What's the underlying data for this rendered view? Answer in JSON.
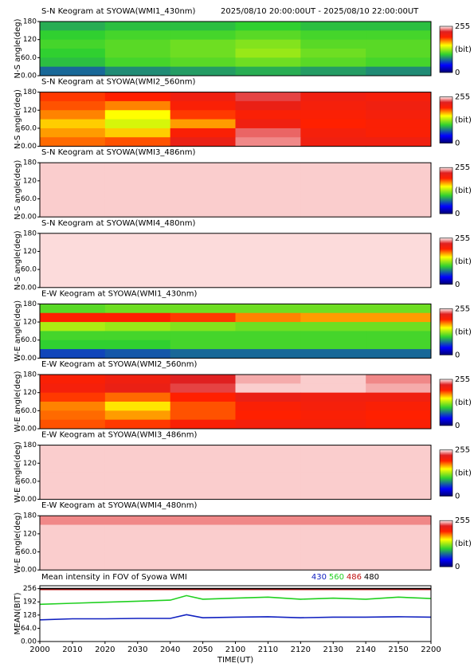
{
  "chart_data": [
    {
      "type": "heatmap",
      "title": "S-N Keogram at SYOWA(WMI1_430nm)",
      "subtitle": "2025/08/10 20:00:00UT - 2025/08/10 22:00:00UT",
      "ylabel": "N-S angle(deg)",
      "xlim": [
        0,
        120
      ],
      "ylim": [
        0,
        180
      ],
      "yticks": [
        180,
        120,
        {
          "value": 60,
          "label": "60.0"
        },
        {
          "value": 0,
          "label": "0.00"
        }
      ],
      "clim": [
        0,
        255
      ],
      "cticks": [
        255,
        0
      ],
      "clabel": "(bit)",
      "colormap": [
        [
          0,
          "#000070"
        ],
        [
          40,
          "#0000ff"
        ],
        [
          100,
          "#30d030"
        ],
        [
          150,
          "#ffff00"
        ],
        [
          195,
          "#ff2000"
        ],
        [
          225,
          "#e02020"
        ],
        [
          255,
          "#fff0f0"
        ]
      ],
      "values": [
        [
          90,
          95,
          95,
          100,
          95,
          95
        ],
        [
          100,
          105,
          105,
          110,
          105,
          105
        ],
        [
          105,
          110,
          115,
          120,
          110,
          110
        ],
        [
          100,
          110,
          115,
          125,
          115,
          110
        ],
        [
          95,
          105,
          110,
          115,
          110,
          105
        ],
        [
          70,
          80,
          85,
          90,
          85,
          80
        ]
      ]
    },
    {
      "type": "heatmap",
      "title": "S-N Keogram at SYOWA(WMI2_560nm)",
      "ylabel": "N-S angle(deg)",
      "xlim": [
        0,
        120
      ],
      "ylim": [
        0,
        180
      ],
      "yticks": [
        180,
        120,
        {
          "value": 60,
          "label": "60.0"
        },
        {
          "value": 0,
          "label": "0.00"
        }
      ],
      "clim": [
        0,
        255
      ],
      "cticks": [
        255,
        0
      ],
      "clabel": "(bit)",
      "colormap": [
        [
          0,
          "#000070"
        ],
        [
          40,
          "#0000ff"
        ],
        [
          100,
          "#30d030"
        ],
        [
          150,
          "#ffff00"
        ],
        [
          195,
          "#ff2000"
        ],
        [
          225,
          "#e02020"
        ],
        [
          255,
          "#fff0f0"
        ]
      ],
      "values": [
        [
          190,
          195,
          210,
          230,
          210,
          205
        ],
        [
          185,
          175,
          200,
          215,
          205,
          210
        ],
        [
          175,
          150,
          190,
          200,
          200,
          205
        ],
        [
          160,
          140,
          170,
          210,
          195,
          200
        ],
        [
          170,
          160,
          200,
          235,
          205,
          200
        ],
        [
          180,
          185,
          215,
          240,
          210,
          210
        ]
      ]
    },
    {
      "type": "heatmap",
      "title": "S-N Keogram at SYOWA(WMI3_486nm)",
      "ylabel": "N-S angle(deg)",
      "xlim": [
        0,
        120
      ],
      "ylim": [
        0,
        180
      ],
      "yticks": [
        180,
        120,
        {
          "value": 60,
          "label": "60.0"
        },
        {
          "value": 0,
          "label": "0.00"
        }
      ],
      "clim": [
        0,
        255
      ],
      "cticks": [
        255,
        0
      ],
      "clabel": "(bit)",
      "colormap": [
        [
          0,
          "#000070"
        ],
        [
          40,
          "#0000ff"
        ],
        [
          100,
          "#30d030"
        ],
        [
          150,
          "#ffff00"
        ],
        [
          195,
          "#ff2000"
        ],
        [
          225,
          "#e02020"
        ],
        [
          255,
          "#fff0f0"
        ]
      ],
      "values": [
        [
          250,
          250,
          250,
          250,
          250,
          250
        ],
        [
          250,
          250,
          250,
          250,
          250,
          250
        ],
        [
          250,
          250,
          250,
          250,
          250,
          250
        ],
        [
          250,
          250,
          250,
          250,
          250,
          250
        ],
        [
          250,
          250,
          250,
          250,
          250,
          250
        ],
        [
          250,
          250,
          250,
          250,
          250,
          250
        ]
      ]
    },
    {
      "type": "heatmap",
      "title": "S-N Keogram at SYOWA(WMI4_480nm)",
      "ylabel": "N-S angle(deg)",
      "xlim": [
        0,
        120
      ],
      "ylim": [
        0,
        180
      ],
      "yticks": [
        180,
        120,
        {
          "value": 60,
          "label": "60.0"
        },
        {
          "value": 0,
          "label": "0.00"
        }
      ],
      "clim": [
        0,
        255
      ],
      "cticks": [
        255,
        0
      ],
      "clabel": "(bit)",
      "colormap": [
        [
          0,
          "#000070"
        ],
        [
          40,
          "#0000ff"
        ],
        [
          100,
          "#30d030"
        ],
        [
          150,
          "#ffff00"
        ],
        [
          195,
          "#ff2000"
        ],
        [
          225,
          "#e02020"
        ],
        [
          255,
          "#fff0f0"
        ]
      ],
      "values": [
        [
          252,
          252,
          252,
          252,
          252,
          252
        ],
        [
          252,
          252,
          252,
          252,
          252,
          252
        ],
        [
          252,
          252,
          252,
          252,
          252,
          252
        ],
        [
          252,
          252,
          252,
          252,
          252,
          252
        ],
        [
          252,
          252,
          252,
          252,
          252,
          252
        ],
        [
          252,
          252,
          252,
          252,
          252,
          252
        ]
      ]
    },
    {
      "type": "heatmap",
      "title": "E-W Keogram at SYOWA(WMI1_430nm)",
      "ylabel": "W-E angle(deg)",
      "xlim": [
        0,
        120
      ],
      "ylim": [
        0,
        180
      ],
      "yticks": [
        180,
        120,
        {
          "value": 60,
          "label": "60.0"
        },
        {
          "value": 0,
          "label": "0.00"
        }
      ],
      "clim": [
        0,
        255
      ],
      "cticks": [
        255,
        0
      ],
      "clabel": "(bit)",
      "colormap": [
        [
          0,
          "#000070"
        ],
        [
          40,
          "#0000ff"
        ],
        [
          100,
          "#30d030"
        ],
        [
          150,
          "#ffff00"
        ],
        [
          195,
          "#ff2000"
        ],
        [
          225,
          "#e02020"
        ],
        [
          255,
          "#fff0f0"
        ]
      ],
      "values": [
        [
          110,
          115,
          115,
          115,
          115,
          115
        ],
        [
          195,
          195,
          190,
          175,
          170,
          170
        ],
        [
          130,
          125,
          120,
          115,
          115,
          115
        ],
        [
          105,
          105,
          105,
          105,
          105,
          105
        ],
        [
          100,
          100,
          105,
          105,
          105,
          105
        ],
        [
          60,
          65,
          70,
          70,
          70,
          70
        ]
      ]
    },
    {
      "type": "heatmap",
      "title": "E-W Keogram at SYOWA(WMI2_560nm)",
      "ylabel": "W-E angle(deg)",
      "xlim": [
        0,
        120
      ],
      "ylim": [
        0,
        180
      ],
      "yticks": [
        180,
        120,
        {
          "value": 60,
          "label": "60.0"
        },
        {
          "value": 0,
          "label": "0.00"
        }
      ],
      "clim": [
        0,
        255
      ],
      "cticks": [
        255,
        0
      ],
      "clabel": "(bit)",
      "colormap": [
        [
          0,
          "#000070"
        ],
        [
          40,
          "#0000ff"
        ],
        [
          100,
          "#30d030"
        ],
        [
          150,
          "#ffff00"
        ],
        [
          195,
          "#ff2000"
        ],
        [
          225,
          "#e02020"
        ],
        [
          255,
          "#fff0f0"
        ]
      ],
      "values": [
        [
          200,
          210,
          225,
          245,
          250,
          240
        ],
        [
          205,
          215,
          230,
          250,
          250,
          245
        ],
        [
          190,
          180,
          195,
          215,
          210,
          210
        ],
        [
          175,
          155,
          185,
          200,
          205,
          200
        ],
        [
          180,
          170,
          185,
          195,
          200,
          195
        ],
        [
          185,
          190,
          200,
          205,
          205,
          200
        ]
      ]
    },
    {
      "type": "heatmap",
      "title": "E-W Keogram at SYOWA(WMI3_486nm)",
      "ylabel": "W-E angle(deg)",
      "xlim": [
        0,
        120
      ],
      "ylim": [
        0,
        180
      ],
      "yticks": [
        180,
        120,
        {
          "value": 60,
          "label": "60.0"
        },
        {
          "value": 0,
          "label": "0.00"
        }
      ],
      "clim": [
        0,
        255
      ],
      "cticks": [
        255,
        0
      ],
      "clabel": "(bit)",
      "colormap": [
        [
          0,
          "#000070"
        ],
        [
          40,
          "#0000ff"
        ],
        [
          100,
          "#30d030"
        ],
        [
          150,
          "#ffff00"
        ],
        [
          195,
          "#ff2000"
        ],
        [
          225,
          "#e02020"
        ],
        [
          255,
          "#fff0f0"
        ]
      ],
      "values": [
        [
          250,
          250,
          250,
          250,
          250,
          250
        ],
        [
          250,
          250,
          250,
          250,
          250,
          250
        ],
        [
          250,
          250,
          250,
          250,
          250,
          250
        ],
        [
          250,
          250,
          250,
          250,
          250,
          250
        ],
        [
          250,
          250,
          250,
          250,
          250,
          250
        ],
        [
          250,
          250,
          250,
          250,
          250,
          250
        ]
      ]
    },
    {
      "type": "heatmap",
      "title": "E-W Keogram at SYOWA(WMI4_480nm)",
      "ylabel": "W-E angle(deg)",
      "xlim": [
        0,
        120
      ],
      "ylim": [
        0,
        180
      ],
      "yticks": [
        180,
        120,
        {
          "value": 60,
          "label": "60.0"
        },
        {
          "value": 0,
          "label": "0.00"
        }
      ],
      "clim": [
        0,
        255
      ],
      "cticks": [
        255,
        0
      ],
      "clabel": "(bit)",
      "colormap": [
        [
          0,
          "#000070"
        ],
        [
          40,
          "#0000ff"
        ],
        [
          100,
          "#30d030"
        ],
        [
          150,
          "#ffff00"
        ],
        [
          195,
          "#ff2000"
        ],
        [
          225,
          "#e02020"
        ],
        [
          255,
          "#fff0f0"
        ]
      ],
      "values": [
        [
          240,
          240,
          240,
          240,
          240,
          240
        ],
        [
          250,
          250,
          250,
          250,
          250,
          250
        ],
        [
          250,
          250,
          250,
          250,
          250,
          250
        ],
        [
          250,
          250,
          250,
          250,
          250,
          250
        ],
        [
          250,
          250,
          250,
          250,
          250,
          250
        ],
        [
          250,
          250,
          250,
          250,
          250,
          250
        ]
      ]
    },
    {
      "type": "line",
      "title": "Mean intensity in FOV of Syowa WMI",
      "ylabel": "MEAN(BIT)",
      "xlabel": "TIME(UT)",
      "xlim": [
        0,
        120
      ],
      "ylim": [
        0,
        270
      ],
      "xticks": [
        {
          "value": 0,
          "label": "2000"
        },
        {
          "value": 10,
          "label": "2010"
        },
        {
          "value": 20,
          "label": "2020"
        },
        {
          "value": 30,
          "label": "2030"
        },
        {
          "value": 40,
          "label": "2040"
        },
        {
          "value": 50,
          "label": "2050"
        },
        {
          "value": 60,
          "label": "2100"
        },
        {
          "value": 70,
          "label": "2110"
        },
        {
          "value": 80,
          "label": "2120"
        },
        {
          "value": 90,
          "label": "2130"
        },
        {
          "value": 100,
          "label": "2140"
        },
        {
          "value": 110,
          "label": "2150"
        },
        {
          "value": 120,
          "label": "2200"
        }
      ],
      "yticks": [
        256,
        192,
        128,
        {
          "value": 64,
          "label": "64.0"
        },
        {
          "value": 0,
          "label": "0.00"
        }
      ],
      "x": [
        0,
        10,
        20,
        30,
        40,
        45,
        50,
        60,
        70,
        80,
        90,
        100,
        110,
        120
      ],
      "series": [
        {
          "name": "430",
          "color": "#1020c0",
          "values": [
            105,
            110,
            110,
            112,
            112,
            130,
            115,
            118,
            120,
            115,
            118,
            118,
            120,
            118
          ]
        },
        {
          "name": "560",
          "color": "#20d020",
          "values": [
            180,
            185,
            190,
            195,
            200,
            222,
            205,
            210,
            215,
            205,
            210,
            205,
            215,
            208
          ]
        },
        {
          "name": "486",
          "color": "#c01010",
          "values": [
            252,
            252,
            252,
            252,
            252,
            252,
            252,
            252,
            252,
            252,
            252,
            252,
            252,
            252
          ]
        },
        {
          "name": "480",
          "color": "#000000",
          "values": [
            256,
            256,
            256,
            256,
            256,
            256,
            256,
            256,
            256,
            256,
            256,
            256,
            256,
            256
          ]
        }
      ]
    }
  ]
}
